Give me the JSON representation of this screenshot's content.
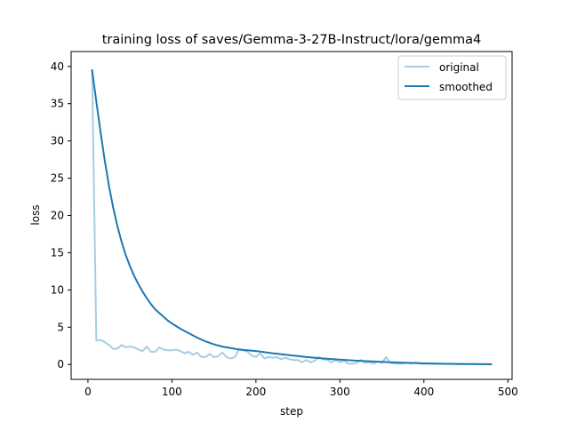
{
  "chart_data": {
    "type": "line",
    "title": "training loss of saves/Gemma-3-27B-Instruct/lora/gemma4",
    "xlabel": "step",
    "ylabel": "loss",
    "xlim": [
      -20,
      505
    ],
    "ylim": [
      -2,
      42
    ],
    "xticks": [
      0,
      100,
      200,
      300,
      400,
      500
    ],
    "yticks": [
      0,
      5,
      10,
      15,
      20,
      25,
      30,
      35,
      40
    ],
    "grid": false,
    "legend": "top-right",
    "series": [
      {
        "name": "original",
        "color": "#a6cde6",
        "x": [
          5,
          10,
          15,
          20,
          25,
          30,
          35,
          40,
          45,
          50,
          55,
          60,
          65,
          70,
          75,
          80,
          85,
          90,
          95,
          100,
          105,
          110,
          115,
          120,
          125,
          130,
          135,
          140,
          145,
          150,
          155,
          160,
          165,
          170,
          175,
          180,
          185,
          190,
          195,
          200,
          205,
          210,
          215,
          220,
          225,
          230,
          235,
          240,
          245,
          250,
          255,
          260,
          265,
          270,
          275,
          280,
          285,
          290,
          295,
          300,
          305,
          310,
          315,
          320,
          325,
          330,
          335,
          340,
          345,
          350,
          355,
          360,
          365,
          370,
          375,
          380,
          385,
          390,
          395,
          400,
          405,
          410,
          415,
          420,
          425,
          430,
          435,
          440,
          445,
          450,
          455,
          460,
          465,
          470,
          475,
          480
        ],
        "y": [
          39.5,
          3.2,
          3.3,
          3.0,
          2.6,
          2.1,
          2.1,
          2.6,
          2.3,
          2.4,
          2.3,
          2.0,
          1.8,
          2.4,
          1.7,
          1.7,
          2.3,
          2.0,
          1.9,
          1.9,
          2.0,
          1.8,
          1.5,
          1.7,
          1.3,
          1.6,
          1.0,
          1.0,
          1.4,
          1.0,
          1.1,
          1.6,
          1.0,
          0.8,
          1.0,
          2.1,
          1.9,
          1.7,
          1.2,
          1.0,
          1.5,
          0.8,
          1.0,
          0.9,
          1.0,
          0.7,
          0.9,
          0.7,
          0.6,
          0.6,
          0.3,
          0.6,
          0.3,
          0.5,
          1.0,
          0.7,
          0.6,
          0.3,
          0.6,
          0.3,
          0.5,
          0.1,
          0.1,
          0.2,
          0.6,
          0.2,
          0.3,
          0.1,
          0.4,
          0.2,
          1.0,
          0.2,
          0.1,
          0.1,
          0.1,
          0.2,
          0.1,
          0.3,
          0.1,
          0.1,
          0.1,
          0.1,
          0.05,
          0.1,
          0.05,
          0.1,
          0.05,
          0.03,
          0.03,
          0.03,
          0.02,
          0.02,
          0.01,
          0.01,
          0.01,
          0.0
        ]
      },
      {
        "name": "smoothed",
        "color": "#1f77b4",
        "x": [
          5,
          10,
          15,
          20,
          25,
          30,
          35,
          40,
          45,
          50,
          55,
          60,
          65,
          70,
          75,
          80,
          85,
          90,
          95,
          100,
          110,
          120,
          130,
          140,
          150,
          160,
          170,
          180,
          190,
          200,
          220,
          240,
          260,
          280,
          300,
          320,
          340,
          360,
          380,
          400,
          420,
          440,
          460,
          480
        ],
        "y": [
          39.5,
          35.3,
          31.2,
          27.4,
          24.0,
          21.1,
          18.6,
          16.5,
          14.7,
          13.2,
          11.9,
          10.8,
          9.8,
          8.9,
          8.1,
          7.4,
          6.9,
          6.4,
          5.9,
          5.5,
          4.8,
          4.2,
          3.6,
          3.1,
          2.7,
          2.4,
          2.2,
          2.0,
          1.9,
          1.8,
          1.5,
          1.25,
          1.0,
          0.8,
          0.65,
          0.5,
          0.4,
          0.3,
          0.22,
          0.15,
          0.1,
          0.07,
          0.05,
          0.03
        ]
      }
    ]
  }
}
